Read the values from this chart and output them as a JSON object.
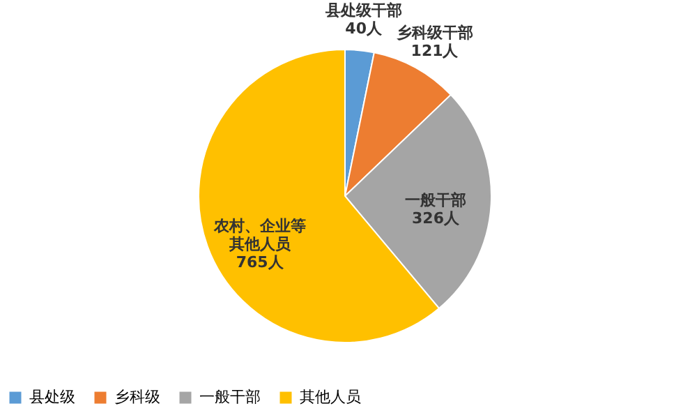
{
  "chart_data": {
    "type": "pie",
    "categories": [
      "县处级",
      "乡科级",
      "一般干部",
      "其他人员"
    ],
    "values": [
      40,
      121,
      326,
      765
    ],
    "colors": [
      "#5b9bd5",
      "#ed7d31",
      "#a5a5a5",
      "#ffc000"
    ],
    "value_labels": [
      "县处级干部\n40人",
      "乡科级干部\n121人",
      "一般干部\n326人",
      "农村、企业等其他人员\n765人"
    ],
    "legend": "bottom"
  }
}
